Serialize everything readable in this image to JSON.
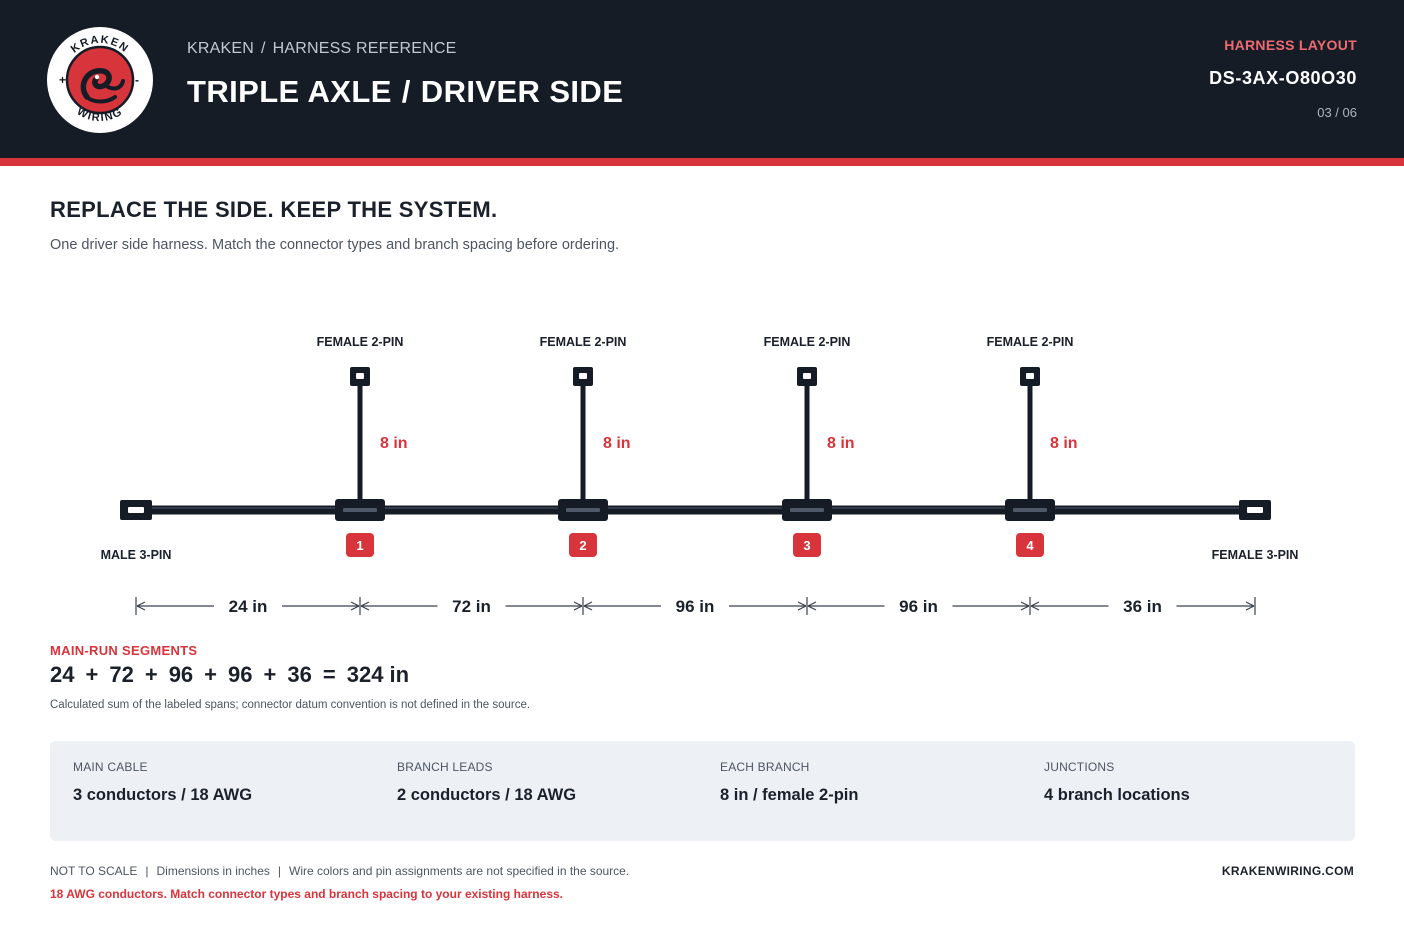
{
  "header": {
    "brand": "KRAKEN",
    "breadcrumb_section": "HARNESS REFERENCE",
    "title_left": "TRIPLE AXLE",
    "title_right": "DRIVER SIDE",
    "doc_kicker": "HARNESS LAYOUT",
    "doc_id": "DS-3AX-O80O30",
    "page": "03 / 06",
    "logo": {
      "top_text": "KRAKEN",
      "bottom_text": "WIRING",
      "icon": "kraken-serpent-icon",
      "colors": {
        "ring": "#161c26",
        "badge": "#d8343c",
        "face": "#ffffff"
      }
    }
  },
  "intro": {
    "headline": "REPLACE THE SIDE. KEEP THE SYSTEM.",
    "subline": "One driver side harness. Match the connector types and branch spacing before ordering."
  },
  "diagram": {
    "colors": {
      "cable": "#161c26",
      "accent": "#d8343c",
      "dim": "#3a4250"
    },
    "left_end": {
      "label": "MALE 3-PIN"
    },
    "right_end": {
      "label": "FEMALE 3-PIN"
    },
    "branches": [
      {
        "number": "1",
        "connector": "FEMALE 2-PIN",
        "length_label": "8 in"
      },
      {
        "number": "2",
        "connector": "FEMALE 2-PIN",
        "length_label": "8 in"
      },
      {
        "number": "3",
        "connector": "FEMALE 2-PIN",
        "length_label": "8 in"
      },
      {
        "number": "4",
        "connector": "FEMALE 2-PIN",
        "length_label": "8 in"
      }
    ],
    "spans": [
      {
        "label": "24 in",
        "value": 24
      },
      {
        "label": "72 in",
        "value": 72
      },
      {
        "label": "96 in",
        "value": 96
      },
      {
        "label": "96 in",
        "value": 96
      },
      {
        "label": "36 in",
        "value": 36
      }
    ]
  },
  "segments": {
    "kicker": "MAIN-RUN SEGMENTS",
    "terms": [
      "24",
      "72",
      "96",
      "96",
      "36"
    ],
    "plus": "+",
    "equals": "=",
    "total": "324 in",
    "note": "Calculated sum of the labeled spans; connector datum convention is not defined in the source."
  },
  "specs": [
    {
      "label": "MAIN CABLE",
      "value": "3 conductors / 18 AWG"
    },
    {
      "label": "BRANCH LEADS",
      "value": "2 conductors / 18 AWG"
    },
    {
      "label": "EACH BRANCH",
      "value": "8 in / female 2-pin"
    },
    {
      "label": "JUNCTIONS",
      "value": "4 branch locations"
    }
  ],
  "footer": {
    "notes": [
      "NOT TO SCALE",
      "Dimensions in inches",
      "Wire colors and pin assignments are not specified in the source."
    ],
    "warning": "18 AWG conductors. Match connector types and branch spacing to your existing harness.",
    "site": "KRAKENWIRING.COM"
  }
}
